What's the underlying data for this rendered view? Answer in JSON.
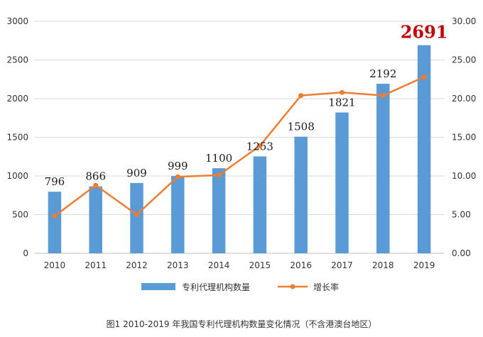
{
  "chart_data": {
    "type": "bar",
    "title": "",
    "caption": "图1 2010-2019 年我国专利代理机构数量变化情况（不含港澳台地区）",
    "categories": [
      "2010",
      "2011",
      "2012",
      "2013",
      "2014",
      "2015",
      "2016",
      "2017",
      "2018",
      "2019"
    ],
    "series": [
      {
        "name": "专利代理机构数量",
        "type": "bar",
        "axis": "left",
        "color": "#5b9bd5",
        "values": [
          796,
          866,
          909,
          999,
          1100,
          1253,
          1508,
          1821,
          2192,
          2691
        ],
        "labels": [
          "796",
          "866",
          "909",
          "999",
          "1100",
          "1253",
          "1508",
          "1821",
          "2192",
          "2691"
        ]
      },
      {
        "name": "增长率",
        "type": "line",
        "axis": "right",
        "color": "#ed7d31",
        "values": [
          4.8,
          8.8,
          5.0,
          9.9,
          10.1,
          13.9,
          20.4,
          20.8,
          20.4,
          22.8
        ]
      }
    ],
    "highlight_label": {
      "index": 9,
      "color": "#c00000"
    },
    "ylim_left": [
      0,
      3000
    ],
    "yticks_left": [
      "0",
      "500",
      "1000",
      "1500",
      "2000",
      "2500",
      "3000"
    ],
    "ylim_right": [
      0,
      30
    ],
    "yticks_right": [
      "0.00",
      "5.00",
      "10.00",
      "15.00",
      "20.00",
      "25.00",
      "30.00"
    ],
    "grid": true,
    "legend_position": "bottom"
  }
}
